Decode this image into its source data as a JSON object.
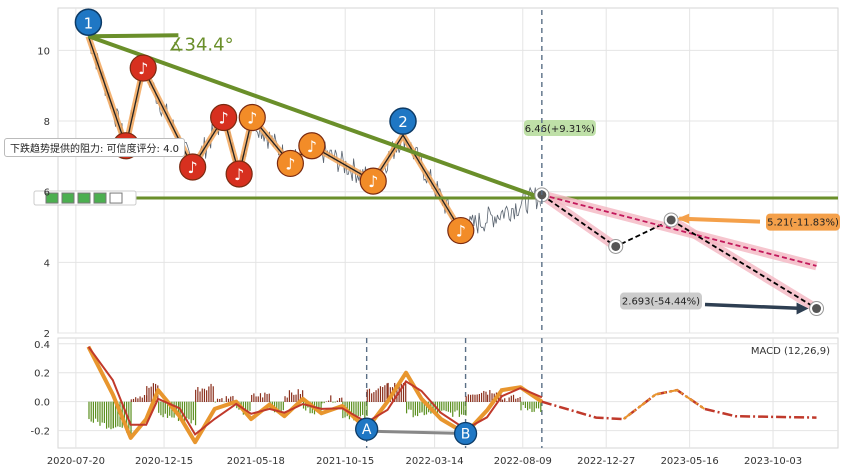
{
  "chart_data": [
    {
      "type": "line",
      "yticks": [
        2,
        4,
        6,
        8,
        10
      ],
      "ylim": [
        2,
        11.2
      ],
      "angle_label": "∡34.4°",
      "resistance_label": "下跌趋势提供的阻力: 可信度评分: 4.0",
      "resistance_level": 5.82,
      "resistance_tick_label": "4",
      "rating_icons": [
        "rating-square-icon",
        "rating-square-icon",
        "rating-square-icon",
        "rating-square-icon",
        "rating-empty-icon"
      ],
      "markers": [
        {
          "label": "1",
          "x": "2020-08-10",
          "y": 10.4
        },
        {
          "label": "2",
          "x": "2022-01-20",
          "y": 7.6
        }
      ],
      "zigzag": [
        {
          "x": "2020-08-10",
          "y": 10.4
        },
        {
          "x": "2020-10-12",
          "y": 7.3
        },
        {
          "x": "2020-11-10",
          "y": 9.5
        },
        {
          "x": "2021-02-01",
          "y": 6.7
        },
        {
          "x": "2021-03-25",
          "y": 8.1
        },
        {
          "x": "2021-04-20",
          "y": 6.5
        },
        {
          "x": "2021-05-12",
          "y": 8.1
        },
        {
          "x": "2021-07-15",
          "y": 6.8
        },
        {
          "x": "2021-08-20",
          "y": 7.3
        },
        {
          "x": "2021-12-01",
          "y": 6.3
        },
        {
          "x": "2022-01-20",
          "y": 7.6
        },
        {
          "x": "2022-04-27",
          "y": 4.9
        }
      ],
      "notes": [
        {
          "x": "2020-10-12",
          "y": 7.3,
          "color": "#d7301f"
        },
        {
          "x": "2020-11-10",
          "y": 9.5,
          "color": "#d7301f"
        },
        {
          "x": "2021-02-01",
          "y": 6.7,
          "color": "#d7301f"
        },
        {
          "x": "2021-03-25",
          "y": 8.1,
          "color": "#d7301f"
        },
        {
          "x": "2021-04-20",
          "y": 6.5,
          "color": "#d7301f"
        },
        {
          "x": "2021-05-12",
          "y": 8.1,
          "color": "#f28c28"
        },
        {
          "x": "2021-07-15",
          "y": 6.8,
          "color": "#f28c28"
        },
        {
          "x": "2021-08-20",
          "y": 7.3,
          "color": "#f28c28"
        },
        {
          "x": "2021-12-01",
          "y": 6.3,
          "color": "#f28c28"
        },
        {
          "x": "2022-04-27",
          "y": 4.9,
          "color": "#f28c28"
        }
      ],
      "trendline": [
        {
          "x": "2020-08-10",
          "y": 10.4
        },
        {
          "x": "2022-09-10",
          "y": 5.82
        }
      ],
      "forecast_label": "6.46(+9.31%)",
      "forecast_point": {
        "x": "2022-09-10",
        "y": 5.91
      },
      "projection_paths": [
        {
          "name": "p1",
          "points": [
            {
              "x": "2022-09-10",
              "y": 5.91
            },
            {
              "x": "2023-01-12",
              "y": 4.45
            },
            {
              "x": "2023-04-15",
              "y": 5.2
            }
          ]
        },
        {
          "name": "p2",
          "points": [
            {
              "x": "2022-09-10",
              "y": 5.91
            },
            {
              "x": "2023-12-15",
              "y": 3.9
            }
          ]
        },
        {
          "name": "p3",
          "points": [
            {
              "x": "2023-04-15",
              "y": 5.2
            },
            {
              "x": "2023-12-15",
              "y": 2.693
            }
          ]
        }
      ],
      "target_1": {
        "label": "5.21(-11.83%)",
        "x": "2023-04-15",
        "y": 5.21
      },
      "target_2": {
        "label": "2.693(-54.44%)",
        "x": "2023-12-15",
        "y": 2.693
      }
    },
    {
      "type": "line",
      "legend": "MACD (12,26,9)",
      "yticks": [
        -0.2,
        0.0,
        0.2,
        0.4
      ],
      "ylim": [
        -0.32,
        0.44
      ],
      "xticks": [
        "2020-07-20",
        "2020-12-15",
        "2021-05-18",
        "2021-10-15",
        "2022-03-14",
        "2022-08-09",
        "2022-12-27",
        "2023-05-16",
        "2023-10-03"
      ],
      "xlim": [
        "2020-06-20",
        "2024-01-20"
      ],
      "dashed_dates": [
        "2021-11-20",
        "2022-05-05",
        "2022-09-10"
      ],
      "labels": [
        {
          "text": "A",
          "x": "2021-11-20",
          "y": -0.19
        },
        {
          "text": "B",
          "x": "2022-05-05",
          "y": -0.22
        }
      ],
      "macd_history": [
        {
          "x": "2020-08-10",
          "y": 0.38
        },
        {
          "x": "2020-09-20",
          "y": 0.05
        },
        {
          "x": "2020-10-20",
          "y": -0.25
        },
        {
          "x": "2020-11-15",
          "y": -0.12
        },
        {
          "x": "2020-12-05",
          "y": 0.08
        },
        {
          "x": "2021-01-10",
          "y": -0.1
        },
        {
          "x": "2021-02-05",
          "y": -0.28
        },
        {
          "x": "2021-03-10",
          "y": -0.05
        },
        {
          "x": "2021-04-15",
          "y": 0.0
        },
        {
          "x": "2021-05-10",
          "y": -0.12
        },
        {
          "x": "2021-06-10",
          "y": -0.02
        },
        {
          "x": "2021-07-05",
          "y": -0.1
        },
        {
          "x": "2021-08-05",
          "y": 0.02
        },
        {
          "x": "2021-09-05",
          "y": -0.08
        },
        {
          "x": "2021-10-10",
          "y": -0.03
        },
        {
          "x": "2021-11-20",
          "y": -0.19
        },
        {
          "x": "2021-12-25",
          "y": 0.0
        },
        {
          "x": "2022-01-25",
          "y": 0.2
        },
        {
          "x": "2022-02-20",
          "y": 0.02
        },
        {
          "x": "2022-03-25",
          "y": -0.12
        },
        {
          "x": "2022-05-05",
          "y": -0.22
        },
        {
          "x": "2022-06-10",
          "y": -0.06
        },
        {
          "x": "2022-07-05",
          "y": 0.08
        },
        {
          "x": "2022-08-05",
          "y": 0.1
        },
        {
          "x": "2022-09-10",
          "y": 0.0
        }
      ],
      "macd_projection": [
        {
          "x": "2022-09-10",
          "y": 0.0
        },
        {
          "x": "2022-12-10",
          "y": -0.11
        },
        {
          "x": "2023-01-25",
          "y": -0.12
        },
        {
          "x": "2023-03-20",
          "y": 0.05
        },
        {
          "x": "2023-04-25",
          "y": 0.08
        },
        {
          "x": "2023-06-10",
          "y": -0.05
        },
        {
          "x": "2023-08-01",
          "y": -0.1
        },
        {
          "x": "2023-12-15",
          "y": -0.11
        }
      ]
    }
  ],
  "colors": {
    "trend": "#6a8f2a",
    "zigzag": "#f2a65a",
    "note_red": "#d7301f",
    "note_orange": "#f28c28",
    "projection": "#000000",
    "projection_pink": "#c2185b",
    "projection_band": "#f4b6c2",
    "marker_blue": "#1f77c4",
    "macd": "#e8962e",
    "signal": "#c0392b",
    "target_orange": "#f4a04a",
    "target_gray": "#cccccc",
    "forecast_green": "#bfe0a8"
  }
}
